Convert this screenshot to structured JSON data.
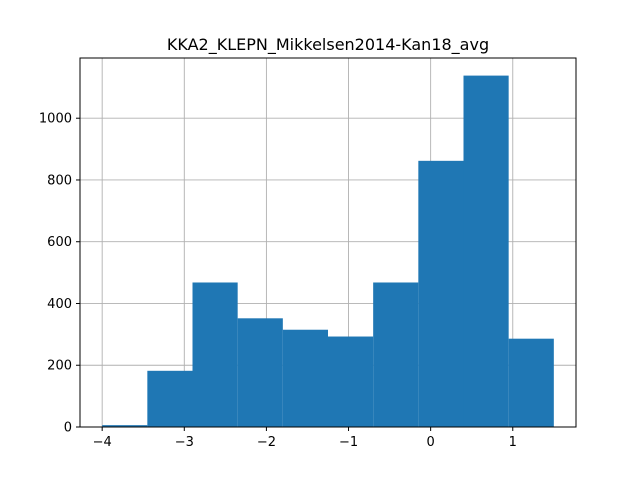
{
  "chart_data": {
    "type": "bar",
    "subtype": "histogram",
    "title": "KKA2_KLEPN_Mikkelsen2014-Kan18_avg",
    "xlabel": "",
    "ylabel": "",
    "grid": true,
    "bar_color": "#1f77b4",
    "bin_edges": [
      -4.0,
      -3.45,
      -2.9,
      -2.35,
      -1.8,
      -1.25,
      -0.7,
      -0.15,
      0.4,
      0.95,
      1.5
    ],
    "counts": [
      6,
      182,
      468,
      352,
      315,
      293,
      468,
      862,
      1138,
      286
    ],
    "xlim": [
      -4.27,
      1.77
    ],
    "ylim": [
      0,
      1195
    ],
    "xticks": [
      -4,
      -3,
      -2,
      -1,
      0,
      1
    ],
    "xtick_labels": [
      "−4",
      "−3",
      "−2",
      "−1",
      "0",
      "1"
    ],
    "yticks": [
      0,
      200,
      400,
      600,
      800,
      1000
    ],
    "ytick_labels": [
      "0",
      "200",
      "400",
      "600",
      "800",
      "1000"
    ]
  }
}
